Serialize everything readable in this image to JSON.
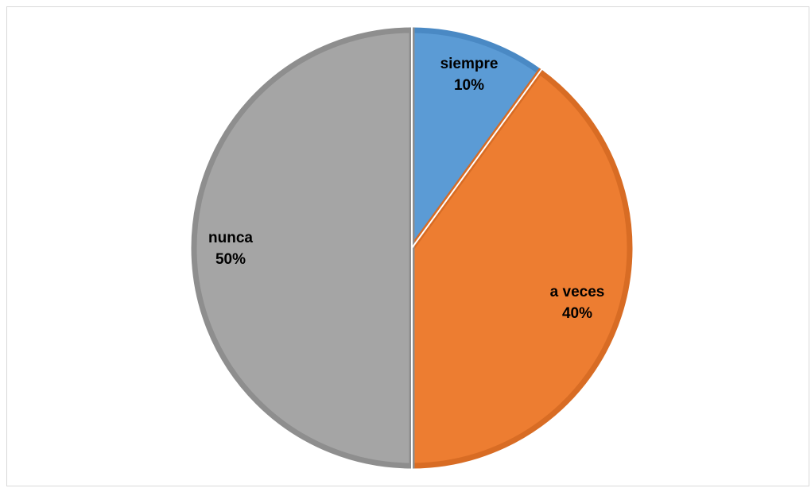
{
  "chart_data": {
    "type": "pie",
    "title": "",
    "slices": [
      {
        "label": "siempre",
        "value": 10,
        "percent_label": "10%",
        "color": "#5B9BD5",
        "border": "#4A89C4"
      },
      {
        "label": "a veces",
        "value": 40,
        "percent_label": "40%",
        "color": "#ED7D31",
        "border": "#D86C24"
      },
      {
        "label": "nunca",
        "value": 50,
        "percent_label": "50%",
        "color": "#A5A5A5",
        "border": "#8E8E8E"
      }
    ],
    "start_angle_deg": 0,
    "direction": "clockwise",
    "legend": "none",
    "data_labels": "category name and percentage"
  }
}
